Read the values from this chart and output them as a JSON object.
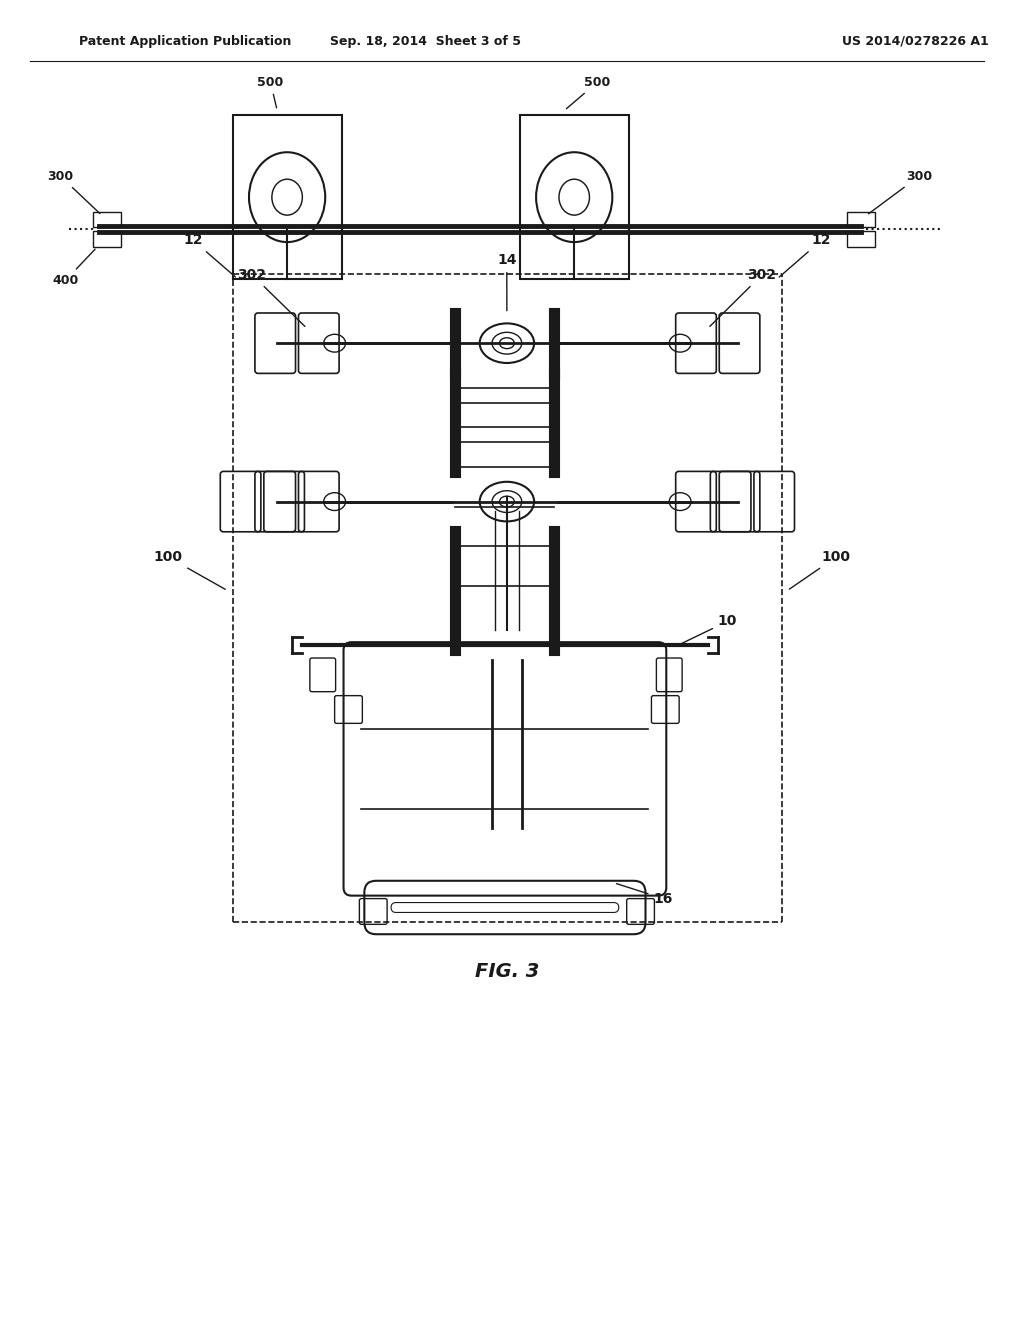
{
  "header_left": "Patent Application Publication",
  "header_center": "Sep. 18, 2014  Sheet 3 of 5",
  "header_right": "US 2014/0278226 A1",
  "figure_label": "FIG. 3",
  "bg_color": "#ffffff",
  "line_color": "#1a1a1a",
  "dashed_color": "#333333"
}
